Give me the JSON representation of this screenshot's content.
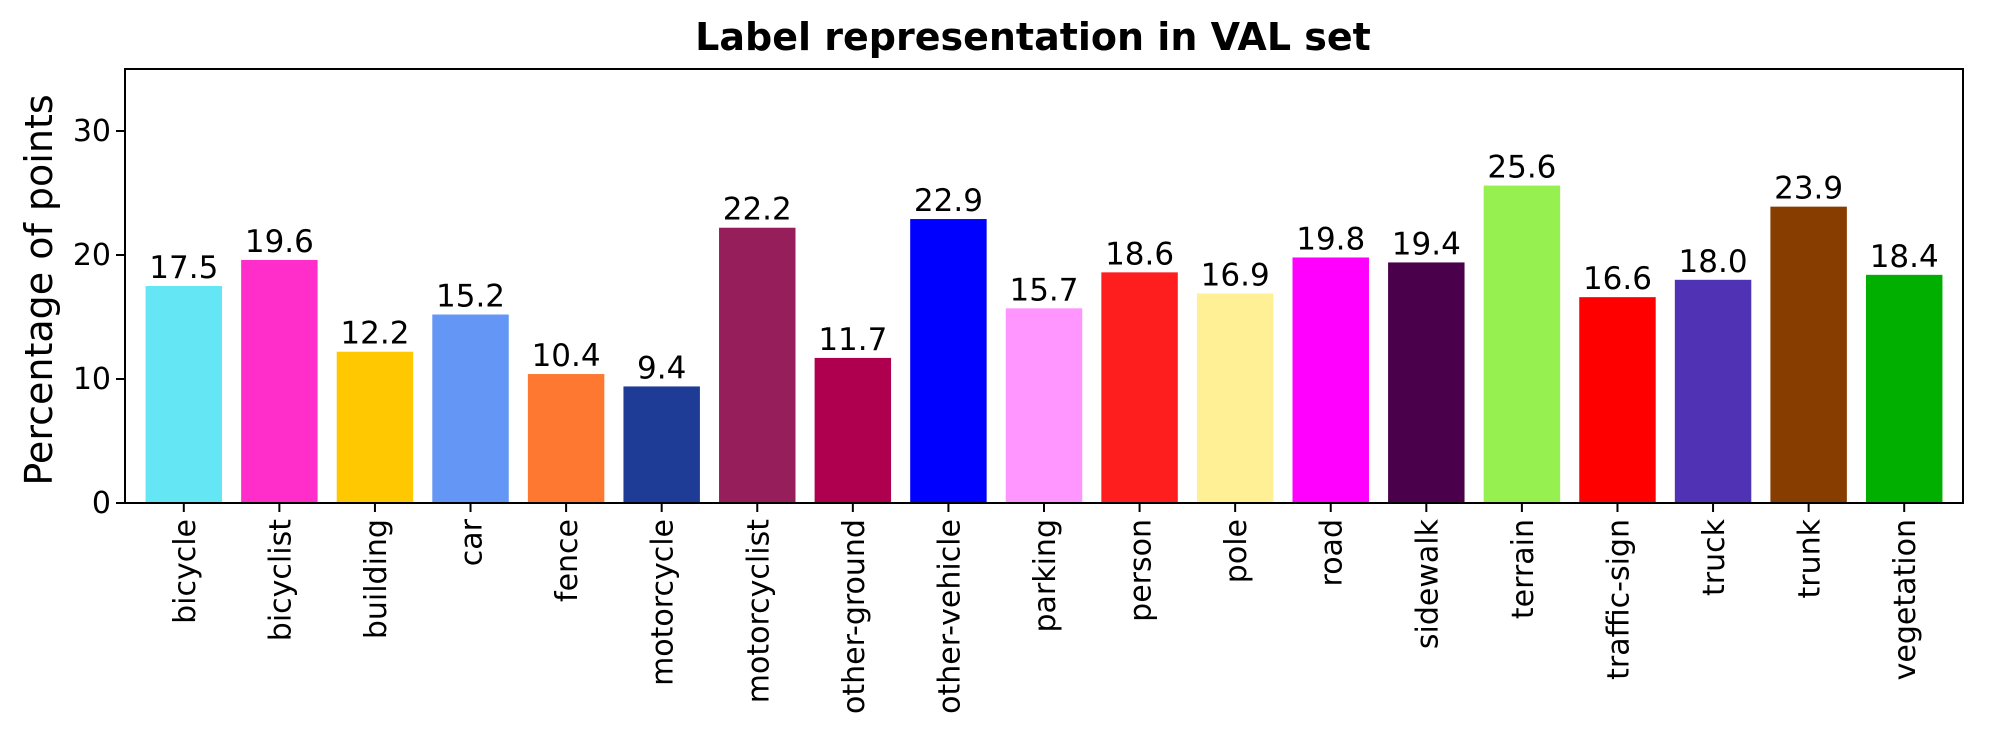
{
  "chart_data": {
    "type": "bar",
    "title": "Label representation in VAL set",
    "xlabel": "",
    "ylabel": "Percentage of points",
    "ylim": [
      0,
      35
    ],
    "yticks": [
      0,
      10,
      20,
      30
    ],
    "grid": false,
    "categories": [
      "bicycle",
      "bicyclist",
      "building",
      "car",
      "fence",
      "motorcycle",
      "motorcyclist",
      "other-ground",
      "other-vehicle",
      "parking",
      "person",
      "pole",
      "road",
      "sidewalk",
      "terrain",
      "traffic-sign",
      "truck",
      "trunk",
      "vegetation"
    ],
    "values": [
      17.5,
      19.6,
      12.2,
      15.2,
      10.4,
      9.4,
      22.2,
      11.7,
      22.9,
      15.7,
      18.6,
      16.9,
      19.8,
      19.4,
      25.6,
      16.6,
      18.0,
      23.9,
      18.4
    ],
    "value_labels": [
      "17.5",
      "19.6",
      "12.2",
      "15.2",
      "10.4",
      "9.4",
      "22.2",
      "11.7",
      "22.9",
      "15.7",
      "18.6",
      "16.9",
      "19.8",
      "19.4",
      "25.6",
      "16.6",
      "18.0",
      "23.9",
      "18.4"
    ],
    "colors": [
      "#64e6f4",
      "#ff2ecb",
      "#ffc800",
      "#6496f5",
      "#ff7832",
      "#1e3c96",
      "#961e5a",
      "#af0050",
      "#0000ff",
      "#ff96ff",
      "#ff1e1e",
      "#fff096",
      "#ff00ff",
      "#4b004b",
      "#96f050",
      "#ff0000",
      "#5032b4",
      "#873c00",
      "#00af00"
    ]
  }
}
